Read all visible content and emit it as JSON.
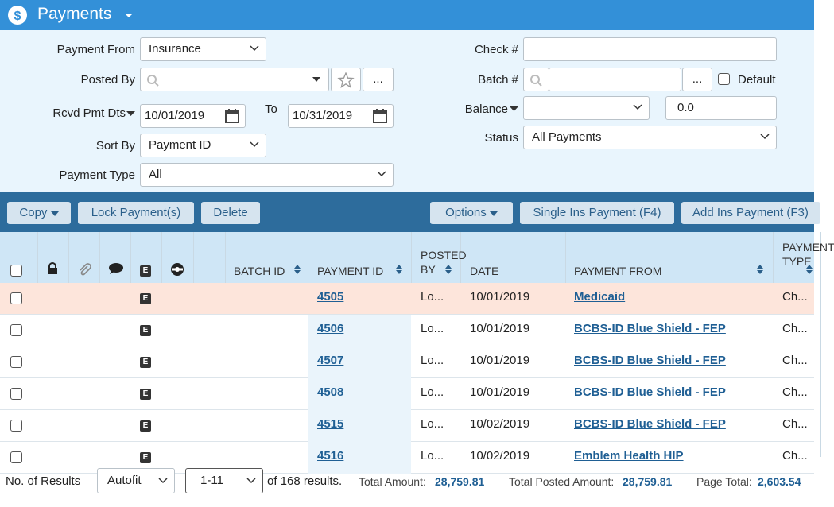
{
  "header": {
    "title": "Payments"
  },
  "filters": {
    "payment_from": {
      "label": "Payment From",
      "value": "Insurance"
    },
    "posted_by": {
      "label": "Posted By",
      "more": "..."
    },
    "rcvd_pmt_dts": {
      "label": "Rcvd Pmt Dts",
      "from": "10/01/2019",
      "to_label": "To",
      "to": "10/31/2019"
    },
    "sort_by": {
      "label": "Sort By",
      "value": "Payment ID"
    },
    "payment_type": {
      "label": "Payment Type",
      "value": "All"
    },
    "check": {
      "label": "Check #"
    },
    "batch": {
      "label": "Batch #",
      "more": "...",
      "default_label": "Default"
    },
    "balance": {
      "label": "Balance",
      "value": "0.0"
    },
    "status": {
      "label": "Status",
      "value": "All Payments"
    }
  },
  "toolbar": {
    "copy": "Copy",
    "lock": "Lock Payment(s)",
    "delete": "Delete",
    "options": "Options",
    "single": "Single Ins Payment (F4)",
    "add": "Add Ins Payment (F3)"
  },
  "table": {
    "badge": "E",
    "columns": [
      "BATCH ID",
      "PAYMENT ID",
      "POSTED BY",
      "DATE",
      "PAYMENT FROM",
      "PAYMENT TYPE"
    ],
    "rows": [
      {
        "payment_id": "4505",
        "posted_by": "Lo...",
        "date": "10/01/2019",
        "payment_from": "Medicaid",
        "payment_type": "Ch..."
      },
      {
        "payment_id": "4506",
        "posted_by": "Lo...",
        "date": "10/01/2019",
        "payment_from": "BCBS-ID Blue Shield - FEP",
        "payment_type": "Ch..."
      },
      {
        "payment_id": "4507",
        "posted_by": "Lo...",
        "date": "10/01/2019",
        "payment_from": "BCBS-ID Blue Shield - FEP",
        "payment_type": "Ch..."
      },
      {
        "payment_id": "4508",
        "posted_by": "Lo...",
        "date": "10/01/2019",
        "payment_from": "BCBS-ID Blue Shield - FEP",
        "payment_type": "Ch..."
      },
      {
        "payment_id": "4515",
        "posted_by": "Lo...",
        "date": "10/02/2019",
        "payment_from": "BCBS-ID Blue Shield - FEP",
        "payment_type": "Ch..."
      },
      {
        "payment_id": "4516",
        "posted_by": "Lo...",
        "date": "10/02/2019",
        "payment_from": "Emblem Health HIP",
        "payment_type": "Ch..."
      }
    ]
  },
  "footer": {
    "results_label": "No. of Results",
    "results_value": "Autofit",
    "page_range": "1-11",
    "of_results": "of 168 results.",
    "total_amount_label": "Total Amount:",
    "total_amount": "28,759.81",
    "total_posted_label": "Total Posted Amount:",
    "total_posted": "28,759.81",
    "page_total_label": "Page Total:",
    "page_total": "2,603.54"
  }
}
